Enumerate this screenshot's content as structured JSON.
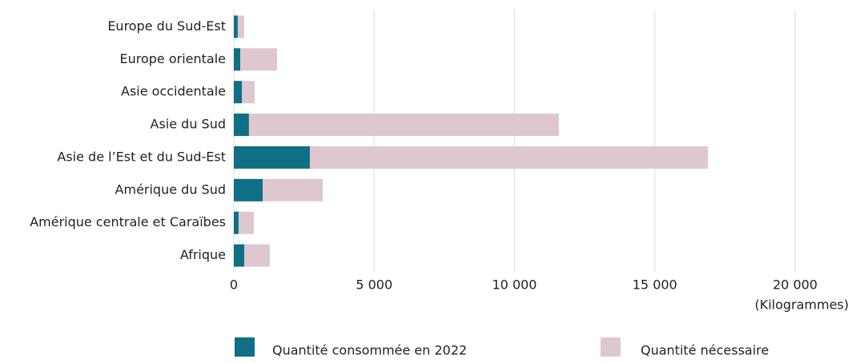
{
  "chart_data": {
    "type": "stacked_barh",
    "categories": [
      "Europe du Sud-Est",
      "Europe orientale",
      "Asie occidentale",
      "Asie du Sud",
      "Asie de l’Est et du Sud-Est",
      "Amérique du Sud",
      "Amérique centrale et Caraïbes",
      "Afrique"
    ],
    "series": [
      {
        "name": "Quantité consommée en 2022",
        "color": "#0e6f85",
        "values": [
          140,
          230,
          290,
          540,
          2710,
          1030,
          170,
          370
        ]
      },
      {
        "name": "Quantité nécessaire",
        "color": "#dfc7cf",
        "values": [
          230,
          1310,
          450,
          11040,
          14180,
          2140,
          540,
          910
        ]
      }
    ],
    "xlim": [
      0,
      20000
    ],
    "xticks": [
      0,
      {
        "value": 5000,
        "label": "5 000"
      },
      {
        "value": 10000,
        "label": "10 000"
      },
      {
        "value": 15000,
        "label": "15 000"
      },
      {
        "value": 20000,
        "label": "20 000"
      }
    ],
    "x_axis_label": "(Kilogrammes)",
    "grid": true,
    "legend": "bottom"
  }
}
